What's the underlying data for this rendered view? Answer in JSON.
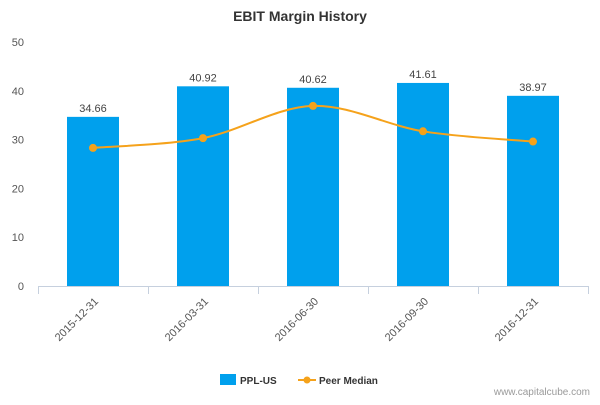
{
  "chart_data": {
    "type": "bar",
    "title": "EBIT Margin History",
    "categories": [
      "2015-12-31",
      "2016-03-31",
      "2016-06-30",
      "2016-09-30",
      "2016-12-31"
    ],
    "series": [
      {
        "name": "PPL-US",
        "kind": "bar",
        "color": "#00a0ed",
        "values": [
          34.66,
          40.92,
          40.62,
          41.61,
          38.97
        ],
        "data_labels": [
          "34.66",
          "40.92",
          "40.62",
          "41.61",
          "38.97"
        ]
      },
      {
        "name": "Peer Median",
        "kind": "line",
        "color": "#f5a21b",
        "values": [
          28.3,
          30.3,
          36.9,
          31.7,
          29.6
        ]
      }
    ],
    "ylim": [
      0,
      50
    ],
    "yticks": [
      0,
      10,
      20,
      30,
      40,
      50
    ],
    "xlabel": "",
    "ylabel": "",
    "legend_position": "bottom",
    "grid": false
  },
  "watermark": "www.capitalcube.com"
}
